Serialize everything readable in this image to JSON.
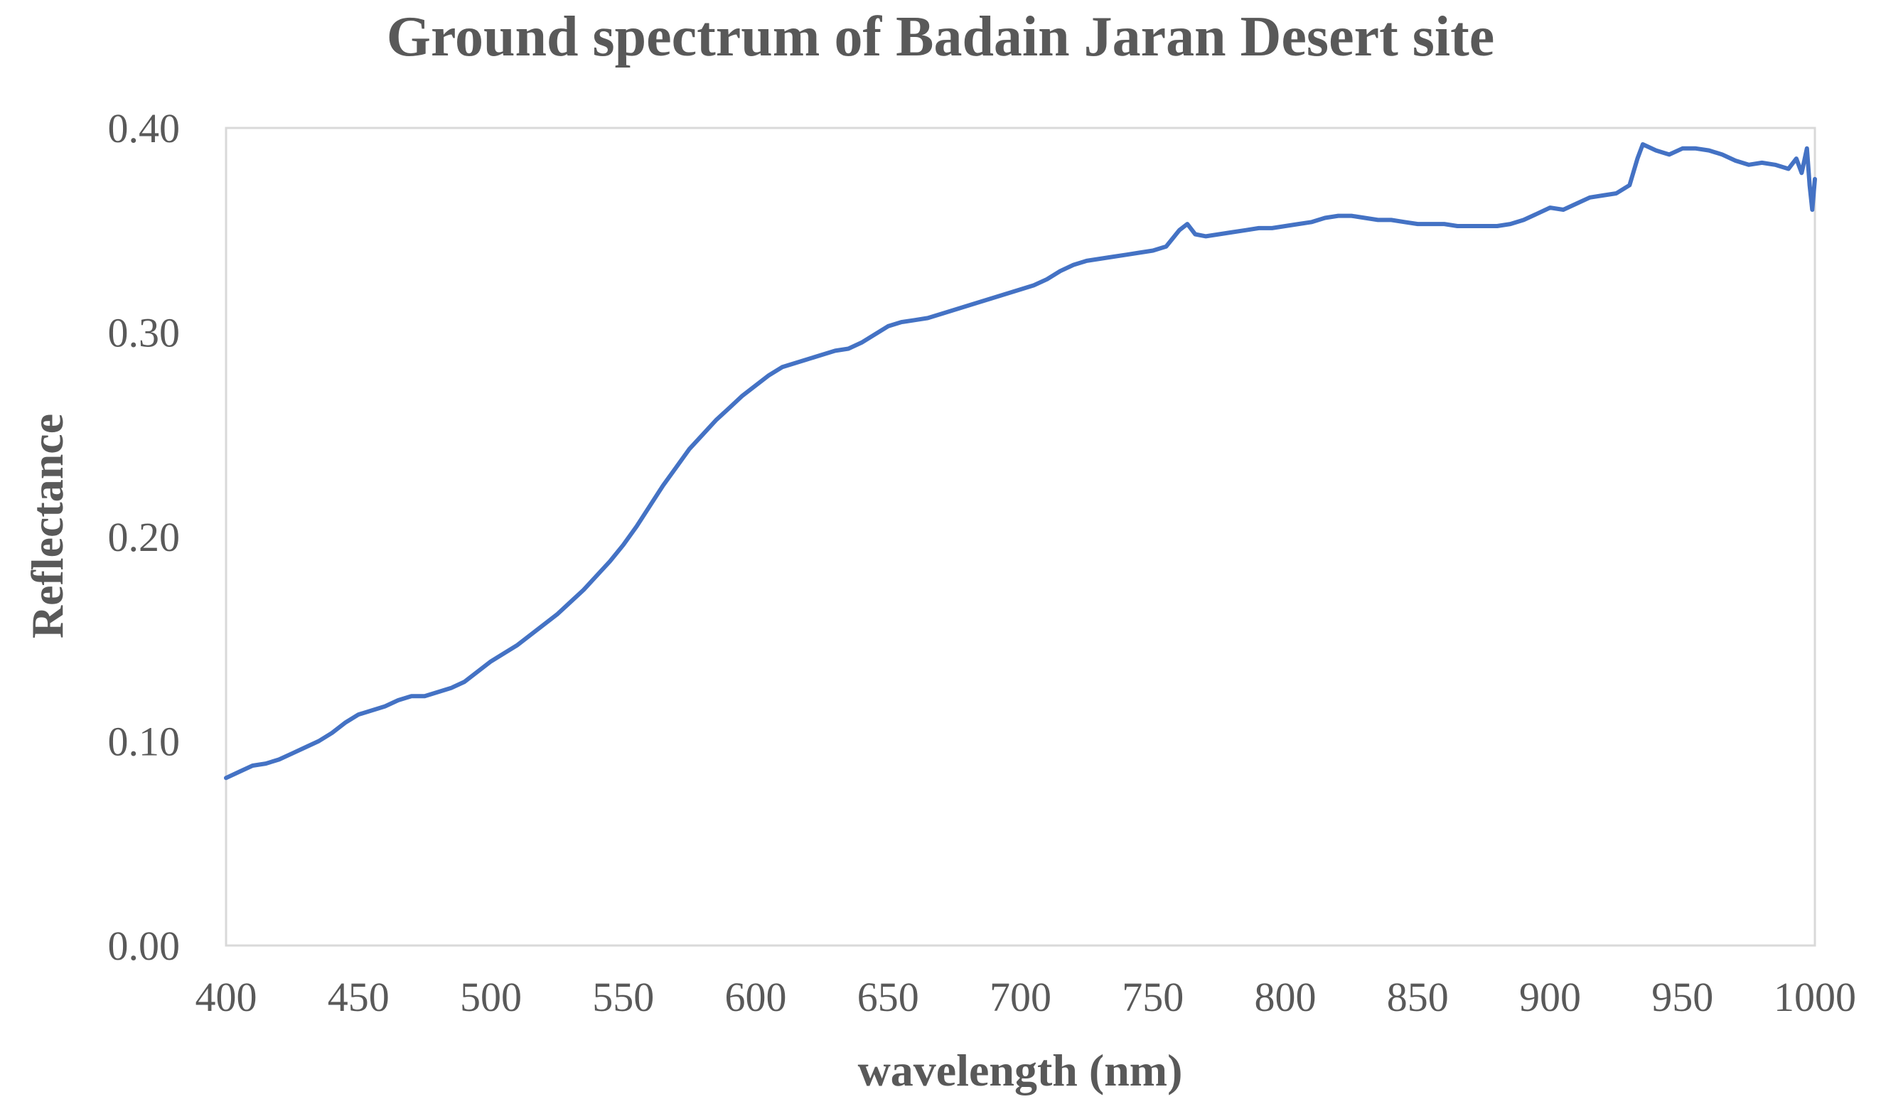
{
  "chart_data": {
    "type": "line",
    "title": "Ground spectrum of Badain Jaran Desert  site",
    "xlabel": "wavelength (nm)",
    "ylabel": "Reflectance",
    "xlim": [
      400,
      1000
    ],
    "ylim": [
      0.0,
      0.4
    ],
    "x_ticks": [
      "400",
      "450",
      "500",
      "550",
      "600",
      "650",
      "700",
      "750",
      "800",
      "850",
      "900",
      "950",
      "1000"
    ],
    "y_ticks": [
      "0.00",
      "0.10",
      "0.20",
      "0.30",
      "0.40"
    ],
    "grid": false,
    "legend": "none",
    "line_color": "#4472C4",
    "series": [
      {
        "x": [
          400,
          405,
          410,
          415,
          420,
          425,
          430,
          435,
          440,
          445,
          450,
          455,
          460,
          465,
          470,
          475,
          480,
          485,
          490,
          495,
          500,
          505,
          510,
          515,
          520,
          525,
          530,
          535,
          540,
          545,
          550,
          555,
          560,
          565,
          570,
          575,
          580,
          585,
          590,
          595,
          600,
          605,
          610,
          615,
          620,
          625,
          630,
          635,
          640,
          645,
          650,
          655,
          660,
          665,
          670,
          675,
          680,
          685,
          690,
          695,
          700,
          705,
          710,
          715,
          720,
          725,
          730,
          735,
          740,
          745,
          750,
          755,
          760,
          763,
          766,
          770,
          775,
          780,
          785,
          790,
          795,
          800,
          805,
          810,
          815,
          820,
          825,
          830,
          835,
          840,
          845,
          850,
          855,
          860,
          865,
          870,
          875,
          880,
          885,
          890,
          895,
          900,
          905,
          910,
          915,
          920,
          925,
          930,
          933,
          935,
          940,
          945,
          950,
          955,
          960,
          965,
          970,
          975,
          980,
          985,
          990,
          993,
          995,
          997,
          998,
          999,
          1000
        ],
        "values": [
          0.082,
          0.085,
          0.088,
          0.089,
          0.091,
          0.094,
          0.097,
          0.1,
          0.104,
          0.109,
          0.113,
          0.115,
          0.117,
          0.12,
          0.122,
          0.122,
          0.124,
          0.126,
          0.129,
          0.134,
          0.139,
          0.143,
          0.147,
          0.152,
          0.157,
          0.162,
          0.168,
          0.174,
          0.181,
          0.188,
          0.196,
          0.205,
          0.215,
          0.225,
          0.234,
          0.243,
          0.25,
          0.257,
          0.263,
          0.269,
          0.274,
          0.279,
          0.283,
          0.285,
          0.287,
          0.289,
          0.291,
          0.292,
          0.295,
          0.299,
          0.303,
          0.305,
          0.306,
          0.307,
          0.309,
          0.311,
          0.313,
          0.315,
          0.317,
          0.319,
          0.321,
          0.323,
          0.326,
          0.33,
          0.333,
          0.335,
          0.336,
          0.337,
          0.338,
          0.339,
          0.34,
          0.342,
          0.35,
          0.353,
          0.348,
          0.347,
          0.348,
          0.349,
          0.35,
          0.351,
          0.351,
          0.352,
          0.353,
          0.354,
          0.356,
          0.357,
          0.357,
          0.356,
          0.355,
          0.355,
          0.354,
          0.353,
          0.353,
          0.353,
          0.352,
          0.352,
          0.352,
          0.352,
          0.353,
          0.355,
          0.358,
          0.361,
          0.36,
          0.363,
          0.366,
          0.367,
          0.368,
          0.372,
          0.385,
          0.392,
          0.389,
          0.387,
          0.39,
          0.39,
          0.389,
          0.387,
          0.384,
          0.382,
          0.383,
          0.382,
          0.38,
          0.385,
          0.378,
          0.39,
          0.372,
          0.36,
          0.375
        ]
      }
    ]
  }
}
